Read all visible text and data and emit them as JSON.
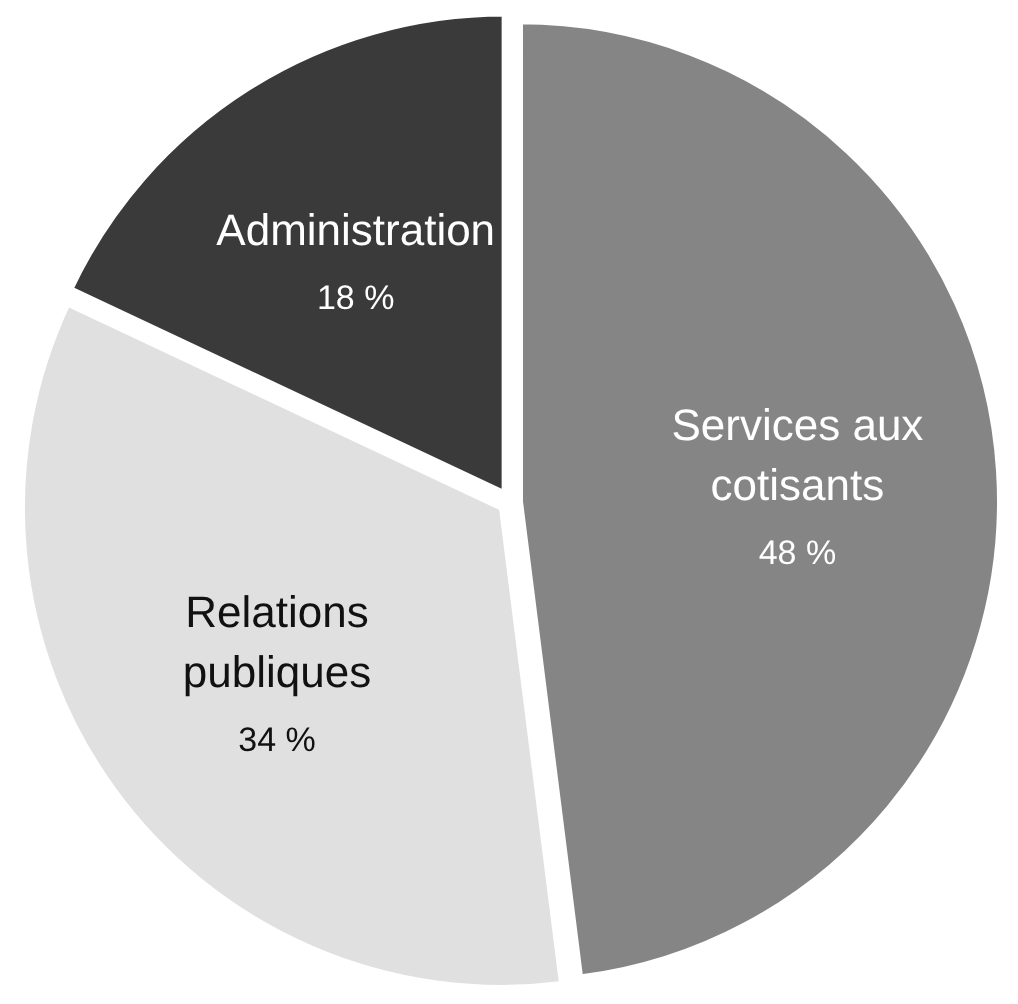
{
  "chart_data": {
    "type": "pie",
    "categories": [
      "Services aux cotisants",
      "Relations publiques",
      "Administration"
    ],
    "values": [
      48,
      34,
      18
    ],
    "colors": [
      "#858585",
      "#e0e0e0",
      "#3a3a3a"
    ],
    "value_labels": [
      "48 %",
      "34 %",
      "18 %"
    ]
  }
}
